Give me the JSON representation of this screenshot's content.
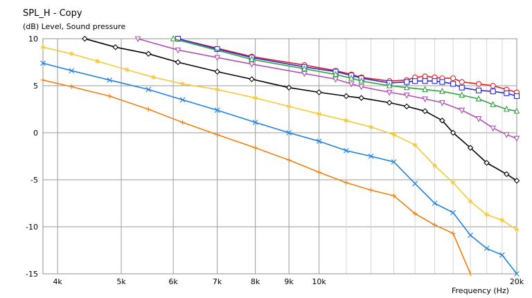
{
  "chart_data": {
    "type": "line",
    "title": "SPL_H - Copy",
    "subtitle": "(dB)  Level, Sound pressure",
    "xlabel": "Frequency  (Hz)",
    "xscale": "log",
    "xlim": [
      3800,
      20000
    ],
    "ylim": [
      -15,
      10
    ],
    "grid": true,
    "legend": "none",
    "y_ticks": [
      {
        "v": 10,
        "label": "10"
      },
      {
        "v": 5,
        "label": "5"
      },
      {
        "v": 0,
        "label": "0"
      },
      {
        "v": -5,
        "label": "-5"
      },
      {
        "v": -10,
        "label": "-10"
      },
      {
        "v": -15,
        "label": "-15"
      }
    ],
    "x_ticks": [
      {
        "v": 4000,
        "label": "4k"
      },
      {
        "v": 5000,
        "label": "5k"
      },
      {
        "v": 6000,
        "label": "6k"
      },
      {
        "v": 7000,
        "label": "7k"
      },
      {
        "v": 8000,
        "label": "8k"
      },
      {
        "v": 9000,
        "label": "9k"
      },
      {
        "v": 10000,
        "label": "10k"
      },
      {
        "v": 20000,
        "label": "20k"
      }
    ],
    "x_minor_grid": [
      11000,
      12000,
      13000,
      14000,
      15000,
      16000,
      17000,
      18000,
      19000
    ],
    "series": [
      {
        "color": "#e02020",
        "marker": "circle",
        "x": [
          6100,
          7900,
          9500,
          10600,
          11200,
          11600,
          12800,
          13600,
          14000,
          14500,
          15000,
          15400,
          16000,
          16500,
          17500,
          18400,
          19300,
          20000
        ],
        "y": [
          10,
          8.1,
          7.2,
          6.6,
          6.2,
          5.9,
          5.5,
          5.6,
          5.9,
          6.0,
          5.9,
          5.8,
          5.8,
          5.4,
          5.2,
          5.0,
          4.6,
          4.3
        ]
      },
      {
        "color": "#2a2ae0",
        "marker": "square",
        "x": [
          6100,
          7000,
          7900,
          9500,
          10600,
          11200,
          11600,
          12800,
          13600,
          14000,
          14500,
          15000,
          15400,
          16000,
          16500,
          17500,
          18400,
          19300,
          20000
        ],
        "y": [
          10,
          8.9,
          8.0,
          7.0,
          6.5,
          6.1,
          5.8,
          5.3,
          5.4,
          5.5,
          5.5,
          5.5,
          5.4,
          5.2,
          4.8,
          4.5,
          4.4,
          4.2,
          3.9
        ]
      },
      {
        "color": "#30a040",
        "marker": "triangle",
        "x": [
          6000,
          7900,
          9500,
          10600,
          11200,
          11600,
          12800,
          13600,
          14500,
          15400,
          16500,
          17500,
          18400,
          19300,
          20000
        ],
        "y": [
          10,
          7.8,
          6.8,
          6.2,
          5.8,
          5.5,
          5.0,
          4.8,
          4.6,
          4.4,
          4.0,
          3.6,
          3.0,
          2.5,
          2.3
        ]
      },
      {
        "color": "#b050b0",
        "marker": "triangle-down",
        "x": [
          5300,
          6100,
          7000,
          7900,
          9500,
          10600,
          11200,
          11600,
          12800,
          13600,
          14500,
          15400,
          16500,
          17500,
          18400,
          19300,
          20000
        ],
        "y": [
          10,
          8.8,
          8.0,
          7.3,
          6.3,
          5.7,
          5.2,
          4.9,
          4.3,
          4.0,
          3.6,
          3.2,
          2.4,
          1.5,
          0.5,
          -0.2,
          -0.6
        ]
      },
      {
        "color": "#000000",
        "marker": "diamond",
        "x": [
          4400,
          4900,
          5500,
          6100,
          7000,
          7900,
          9000,
          10000,
          11000,
          11600,
          12800,
          13600,
          14500,
          15400,
          16000,
          17000,
          18000,
          19300,
          20000
        ],
        "y": [
          10,
          9.1,
          8.4,
          7.5,
          6.5,
          5.7,
          4.8,
          4.3,
          3.9,
          3.7,
          3.2,
          2.8,
          2.3,
          1.3,
          0,
          -1.6,
          -3.2,
          -4.4,
          -5.1
        ]
      },
      {
        "color": "#f5c93a",
        "marker": "asterisk",
        "x": [
          3800,
          4200,
          4600,
          5100,
          5600,
          6200,
          7000,
          8000,
          9000,
          10000,
          11000,
          12000,
          13000,
          14000,
          15000,
          16000,
          17000,
          18000,
          19000,
          20000
        ],
        "y": [
          9.1,
          8.4,
          7.6,
          6.7,
          5.9,
          5.2,
          4.6,
          3.7,
          2.8,
          2.0,
          1.3,
          0.6,
          -0.2,
          -1.3,
          -3.5,
          -5.3,
          -7.3,
          -8.7,
          -9.3,
          -10.3
        ]
      },
      {
        "color": "#2080e0",
        "marker": "x",
        "x": [
          3800,
          4200,
          4800,
          5500,
          6200,
          7000,
          8000,
          9000,
          10000,
          11000,
          12000,
          13000,
          14000,
          15000,
          16000,
          17000,
          18000,
          19000,
          20000
        ],
        "y": [
          7.4,
          6.6,
          5.6,
          4.6,
          3.5,
          2.4,
          1.1,
          0.0,
          -0.9,
          -1.9,
          -2.5,
          -3.1,
          -5.4,
          -7.5,
          -8.5,
          -10.9,
          -12.3,
          -13.0,
          -15.0
        ]
      },
      {
        "color": "#f07f10",
        "marker": "plus",
        "x": [
          3800,
          4200,
          4800,
          5500,
          6200,
          7000,
          8000,
          9000,
          10000,
          11000,
          12000,
          13000,
          14000,
          15000,
          16000,
          17000
        ],
        "y": [
          5.6,
          4.9,
          3.9,
          2.5,
          1.1,
          -0.2,
          -1.6,
          -2.9,
          -4.2,
          -5.3,
          -6.1,
          -6.7,
          -8.6,
          -9.8,
          -10.7,
          -15.0
        ]
      }
    ]
  }
}
